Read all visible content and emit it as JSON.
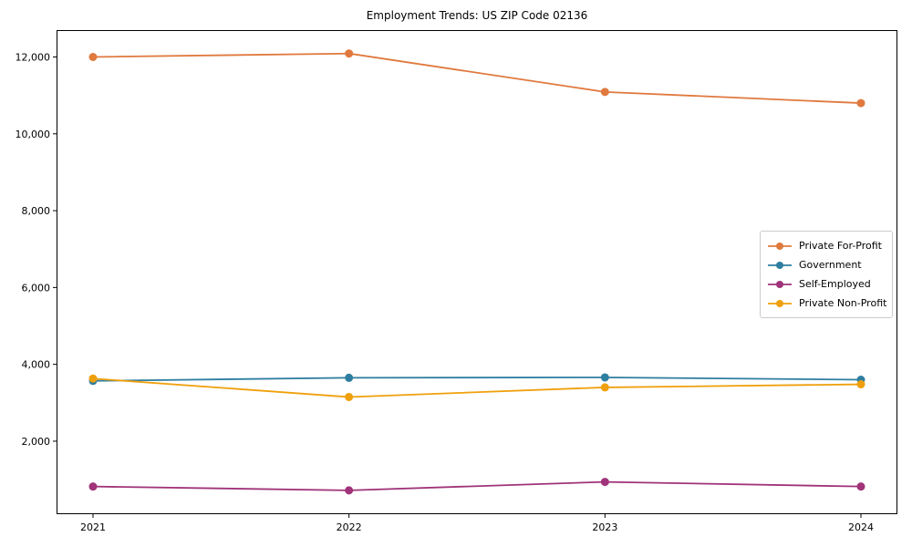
{
  "title": "Employment Trends: US ZIP Code 02136",
  "chart_data": {
    "type": "line",
    "x": [
      2021,
      2022,
      2023,
      2024
    ],
    "x_tick_labels": [
      "2021",
      "2022",
      "2023",
      "2024"
    ],
    "series": [
      {
        "name": "Private For-Profit",
        "color": "#E0793E",
        "values": [
          12000,
          12090,
          11090,
          10800
        ]
      },
      {
        "name": "Government",
        "color": "#2E7EA0",
        "values": [
          3570,
          3650,
          3660,
          3600
        ]
      },
      {
        "name": "Self-Employed",
        "color": "#A03379",
        "values": [
          820,
          720,
          940,
          820
        ]
      },
      {
        "name": "Private Non-Profit",
        "color": "#EFA00C",
        "values": [
          3630,
          3150,
          3400,
          3480
        ]
      }
    ],
    "title": "Employment Trends: US ZIP Code 02136",
    "xlabel": "",
    "ylabel": "",
    "ylim": [
      100,
      12700
    ],
    "y_ticks": {
      "values": [
        2000,
        4000,
        6000,
        8000,
        10000,
        12000
      ],
      "labels": [
        "2,000",
        "4,000",
        "6,000",
        "8,000",
        "10,000",
        "12,000"
      ]
    },
    "grid": false,
    "marker": "circle",
    "legend_position": "center-right",
    "frame_color": "#000000",
    "tick_label_color": "#000000"
  }
}
